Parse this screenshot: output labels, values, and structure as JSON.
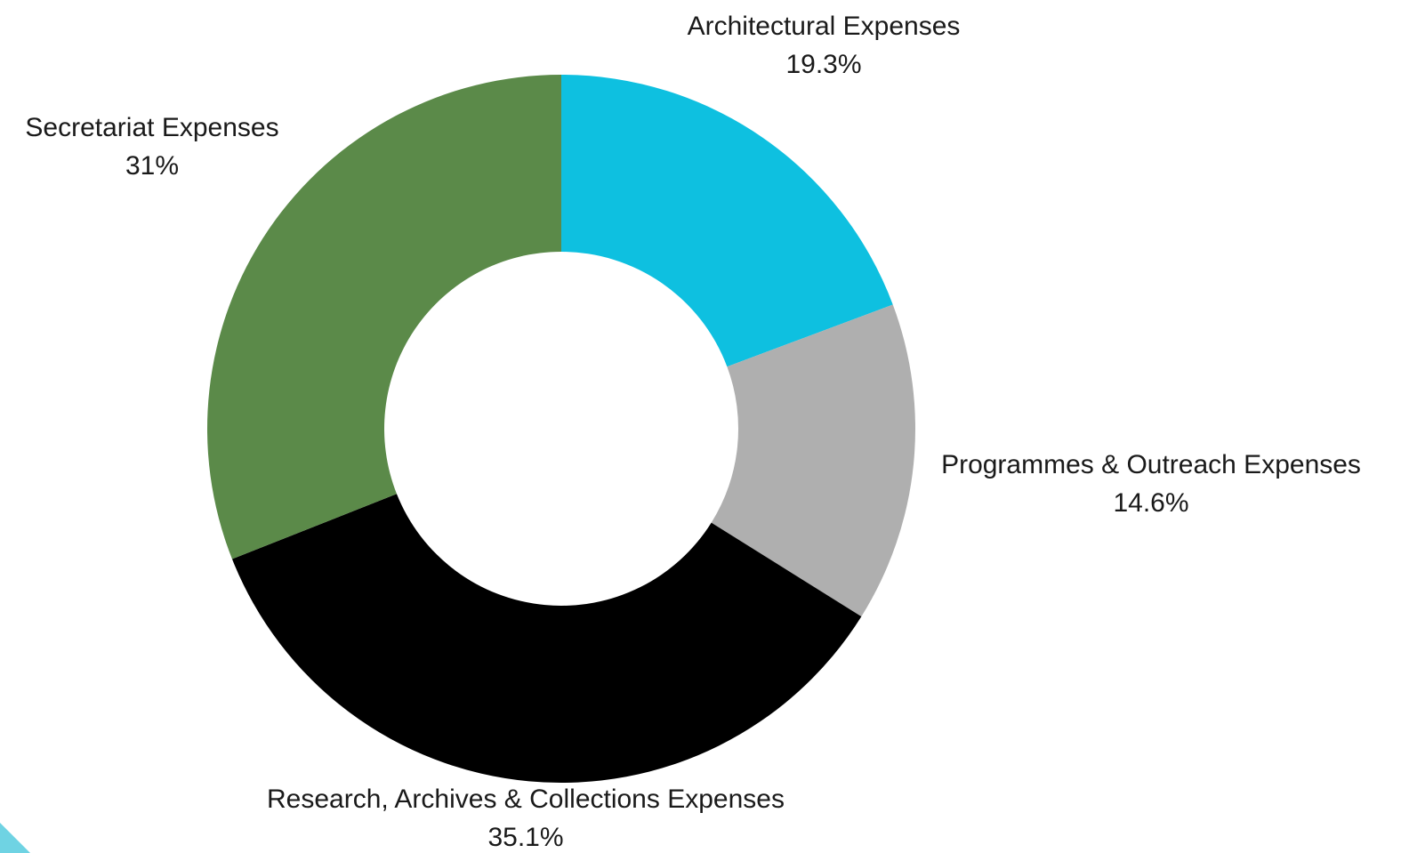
{
  "chart_data": {
    "type": "pie",
    "variant": "donut",
    "start_angle_deg": 0,
    "direction": "clockwise",
    "slices": [
      {
        "label": "Architectural Expenses",
        "value": 19.3,
        "value_label": "19.3%",
        "color": "#0EC0E0"
      },
      {
        "label": "Programmes & Outreach Expenses",
        "value": 14.6,
        "value_label": "14.6%",
        "color": "#AFAFAF"
      },
      {
        "label": "Research, Archives & Collections Expenses",
        "value": 35.1,
        "value_label": "35.1%",
        "color": "#000000"
      },
      {
        "label": "Secretariat Expenses",
        "value": 31,
        "value_label": "31%",
        "color": "#5B8A49"
      }
    ]
  },
  "decoration": {
    "corner_accent_color": "#6FD3E3"
  }
}
